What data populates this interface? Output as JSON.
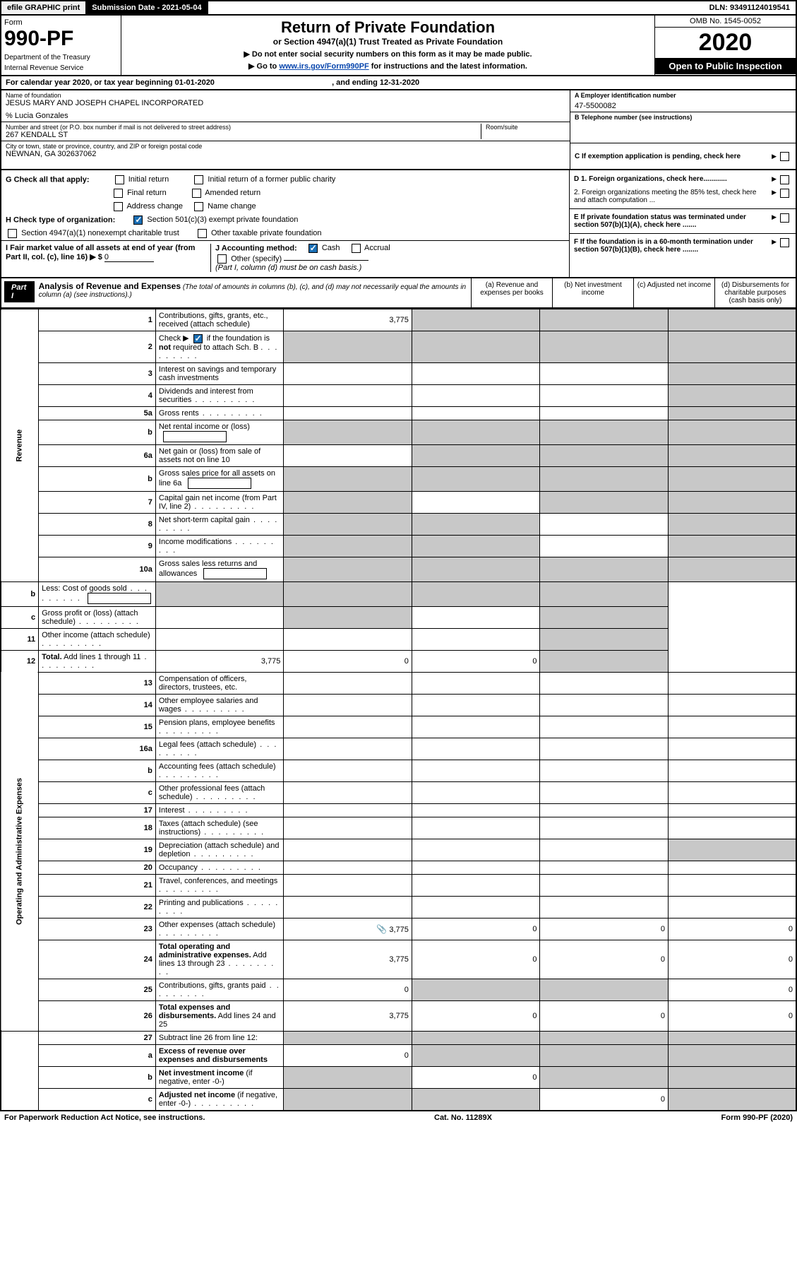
{
  "topbar": {
    "efile": "efile GRAPHIC print",
    "subdate": "Submission Date - 2021-05-04",
    "dln": "DLN: 93491124019541"
  },
  "header": {
    "form_label": "Form",
    "form_num": "990-PF",
    "dept": "Department of the Treasury",
    "irs": "Internal Revenue Service",
    "title": "Return of Private Foundation",
    "subtitle": "or Section 4947(a)(1) Trust Treated as Private Foundation",
    "instr1": "▶ Do not enter social security numbers on this form as it may be made public.",
    "instr2_pre": "▶ Go to ",
    "instr2_link": "www.irs.gov/Form990PF",
    "instr2_post": " for instructions and the latest information.",
    "omb": "OMB No. 1545-0052",
    "year": "2020",
    "open": "Open to Public Inspection"
  },
  "cal": {
    "text_pre": "For calendar year 2020, or tax year beginning ",
    "begin": "01-01-2020",
    "mid": " , and ending ",
    "end": "12-31-2020"
  },
  "info": {
    "name_lab": "Name of foundation",
    "name": "JESUS MARY AND JOSEPH CHAPEL INCORPORATED",
    "care": "% Lucia Gonzales",
    "street_lab": "Number and street (or P.O. box number if mail is not delivered to street address)",
    "street": "267 KENDALL ST",
    "room_lab": "Room/suite",
    "city_lab": "City or town, state or province, country, and ZIP or foreign postal code",
    "city": "NEWNAN, GA  302637062",
    "a_lab": "A Employer identification number",
    "a_val": "47-5500082",
    "b_lab": "B Telephone number (see instructions)",
    "c_lab": "C If exemption application is pending, check here"
  },
  "checks": {
    "g_label": "G Check all that apply:",
    "g1": "Initial return",
    "g2": "Initial return of a former public charity",
    "g3": "Final return",
    "g4": "Amended return",
    "g5": "Address change",
    "g6": "Name change",
    "h_label": "H Check type of organization:",
    "h1": "Section 501(c)(3) exempt private foundation",
    "h2": "Section 4947(a)(1) nonexempt charitable trust",
    "h3": "Other taxable private foundation",
    "i_label": "I Fair market value of all assets at end of year (from Part II, col. (c), line 16) ▶ $",
    "i_val": "0",
    "j_label": "J Accounting method:",
    "j1": "Cash",
    "j2": "Accrual",
    "j3": "Other (specify)",
    "j_note": "(Part I, column (d) must be on cash basis.)",
    "d1": "D 1. Foreign organizations, check here............",
    "d2": "2. Foreign organizations meeting the 85% test, check here and attach computation ...",
    "e": "E  If private foundation status was terminated under section 507(b)(1)(A), check here .......",
    "f": "F  If the foundation is in a 60-month termination under section 507(b)(1)(B), check here ........"
  },
  "part1": {
    "label": "Part I",
    "title": "Analysis of Revenue and Expenses",
    "note": "(The total of amounts in columns (b), (c), and (d) may not necessarily equal the amounts in column (a) (see instructions).)",
    "col_a": "(a)   Revenue and expenses per books",
    "col_b": "(b)  Net investment income",
    "col_c": "(c)  Adjusted net income",
    "col_d": "(d)  Disbursements for charitable purposes (cash basis only)"
  },
  "side": {
    "rev": "Revenue",
    "exp": "Operating and Administrative Expenses"
  },
  "rows": [
    {
      "n": "1",
      "d": "Contributions, gifts, grants, etc., received (attach schedule)",
      "a": "3,775",
      "shade": [
        "b",
        "c",
        "d"
      ]
    },
    {
      "n": "2",
      "d": "Check ▶ [✓] if the foundation is <b>not</b> required to attach Sch. B",
      "shade": [
        "a",
        "b",
        "c",
        "d"
      ],
      "check": true
    },
    {
      "n": "3",
      "d": "Interest on savings and temporary cash investments",
      "shade": [
        "d"
      ]
    },
    {
      "n": "4",
      "d": "Dividends and interest from securities",
      "dots": true,
      "shade": [
        "d"
      ]
    },
    {
      "n": "5a",
      "d": "Gross rents",
      "dots": true,
      "shade": [
        "d"
      ]
    },
    {
      "n": "b",
      "d": "Net rental income or (loss)",
      "inline": true,
      "shade": [
        "a",
        "b",
        "c",
        "d"
      ]
    },
    {
      "n": "6a",
      "d": "Net gain or (loss) from sale of assets not on line 10",
      "shade": [
        "b",
        "c",
        "d"
      ]
    },
    {
      "n": "b",
      "d": "Gross sales price for all assets on line 6a",
      "inline": true,
      "shade": [
        "a",
        "b",
        "c",
        "d"
      ]
    },
    {
      "n": "7",
      "d": "Capital gain net income (from Part IV, line 2)",
      "dots": true,
      "shade": [
        "a",
        "c",
        "d"
      ]
    },
    {
      "n": "8",
      "d": "Net short-term capital gain",
      "dots": true,
      "shade": [
        "a",
        "b",
        "d"
      ]
    },
    {
      "n": "9",
      "d": "Income modifications",
      "dots": true,
      "shade": [
        "a",
        "b",
        "d"
      ]
    },
    {
      "n": "10a",
      "d": "Gross sales less returns and allowances",
      "inline": true,
      "shade": [
        "a",
        "b",
        "c",
        "d"
      ]
    },
    {
      "n": "b",
      "d": "Less: Cost of goods sold",
      "dots": true,
      "inline": true,
      "shade": [
        "a",
        "b",
        "c",
        "d"
      ]
    },
    {
      "n": "c",
      "d": "Gross profit or (loss) (attach schedule)",
      "dots": true,
      "shade": [
        "b",
        "d"
      ]
    },
    {
      "n": "11",
      "d": "Other income (attach schedule)",
      "dots": true,
      "shade": [
        "d"
      ]
    },
    {
      "n": "12",
      "d": "<b>Total.</b> Add lines 1 through 11",
      "dots": true,
      "a": "3,775",
      "b": "0",
      "c": "0",
      "shade": [
        "d"
      ]
    },
    {
      "n": "13",
      "d": "Compensation of officers, directors, trustees, etc.",
      "exp": true
    },
    {
      "n": "14",
      "d": "Other employee salaries and wages",
      "dots": true,
      "exp": true
    },
    {
      "n": "15",
      "d": "Pension plans, employee benefits",
      "dots": true,
      "exp": true
    },
    {
      "n": "16a",
      "d": "Legal fees (attach schedule)",
      "dots": true,
      "exp": true
    },
    {
      "n": "b",
      "d": "Accounting fees (attach schedule)",
      "dots": true,
      "exp": true
    },
    {
      "n": "c",
      "d": "Other professional fees (attach schedule)",
      "dots": true,
      "exp": true
    },
    {
      "n": "17",
      "d": "Interest",
      "dots": true,
      "exp": true
    },
    {
      "n": "18",
      "d": "Taxes (attach schedule) (see instructions)",
      "dots": true,
      "exp": true
    },
    {
      "n": "19",
      "d": "Depreciation (attach schedule) and depletion",
      "dots": true,
      "exp": true,
      "shade": [
        "d"
      ]
    },
    {
      "n": "20",
      "d": "Occupancy",
      "dots": true,
      "exp": true
    },
    {
      "n": "21",
      "d": "Travel, conferences, and meetings",
      "dots": true,
      "exp": true
    },
    {
      "n": "22",
      "d": "Printing and publications",
      "dots": true,
      "exp": true
    },
    {
      "n": "23",
      "d": "Other expenses (attach schedule)",
      "dots": true,
      "exp": true,
      "a": "3,775",
      "b": "0",
      "c": "0",
      "dd": "0",
      "icon": true
    },
    {
      "n": "24",
      "d": "<b>Total operating and administrative expenses.</b> Add lines 13 through 23",
      "dots": true,
      "exp": true,
      "a": "3,775",
      "b": "0",
      "c": "0",
      "dd": "0"
    },
    {
      "n": "25",
      "d": "Contributions, gifts, grants paid",
      "dots": true,
      "exp": true,
      "a": "0",
      "dd": "0",
      "shade": [
        "b",
        "c"
      ]
    },
    {
      "n": "26",
      "d": "<b>Total expenses and disbursements.</b> Add lines 24 and 25",
      "exp": true,
      "a": "3,775",
      "b": "0",
      "c": "0",
      "dd": "0"
    },
    {
      "n": "27",
      "d": "Subtract line 26 from line 12:",
      "shade": [
        "a",
        "b",
        "c",
        "d"
      ]
    },
    {
      "n": "a",
      "d": "<b>Excess of revenue over expenses and disbursements</b>",
      "a": "0",
      "shade": [
        "b",
        "c",
        "d"
      ]
    },
    {
      "n": "b",
      "d": "<b>Net investment income</b> (if negative, enter -0-)",
      "b": "0",
      "shade": [
        "a",
        "c",
        "d"
      ]
    },
    {
      "n": "c",
      "d": "<b>Adjusted net income</b> (if negative, enter -0-)",
      "dots": true,
      "c": "0",
      "shade": [
        "a",
        "b",
        "d"
      ]
    }
  ],
  "footer": {
    "left": "For Paperwork Reduction Act Notice, see instructions.",
    "mid": "Cat. No. 11289X",
    "right": "Form 990-PF (2020)"
  }
}
